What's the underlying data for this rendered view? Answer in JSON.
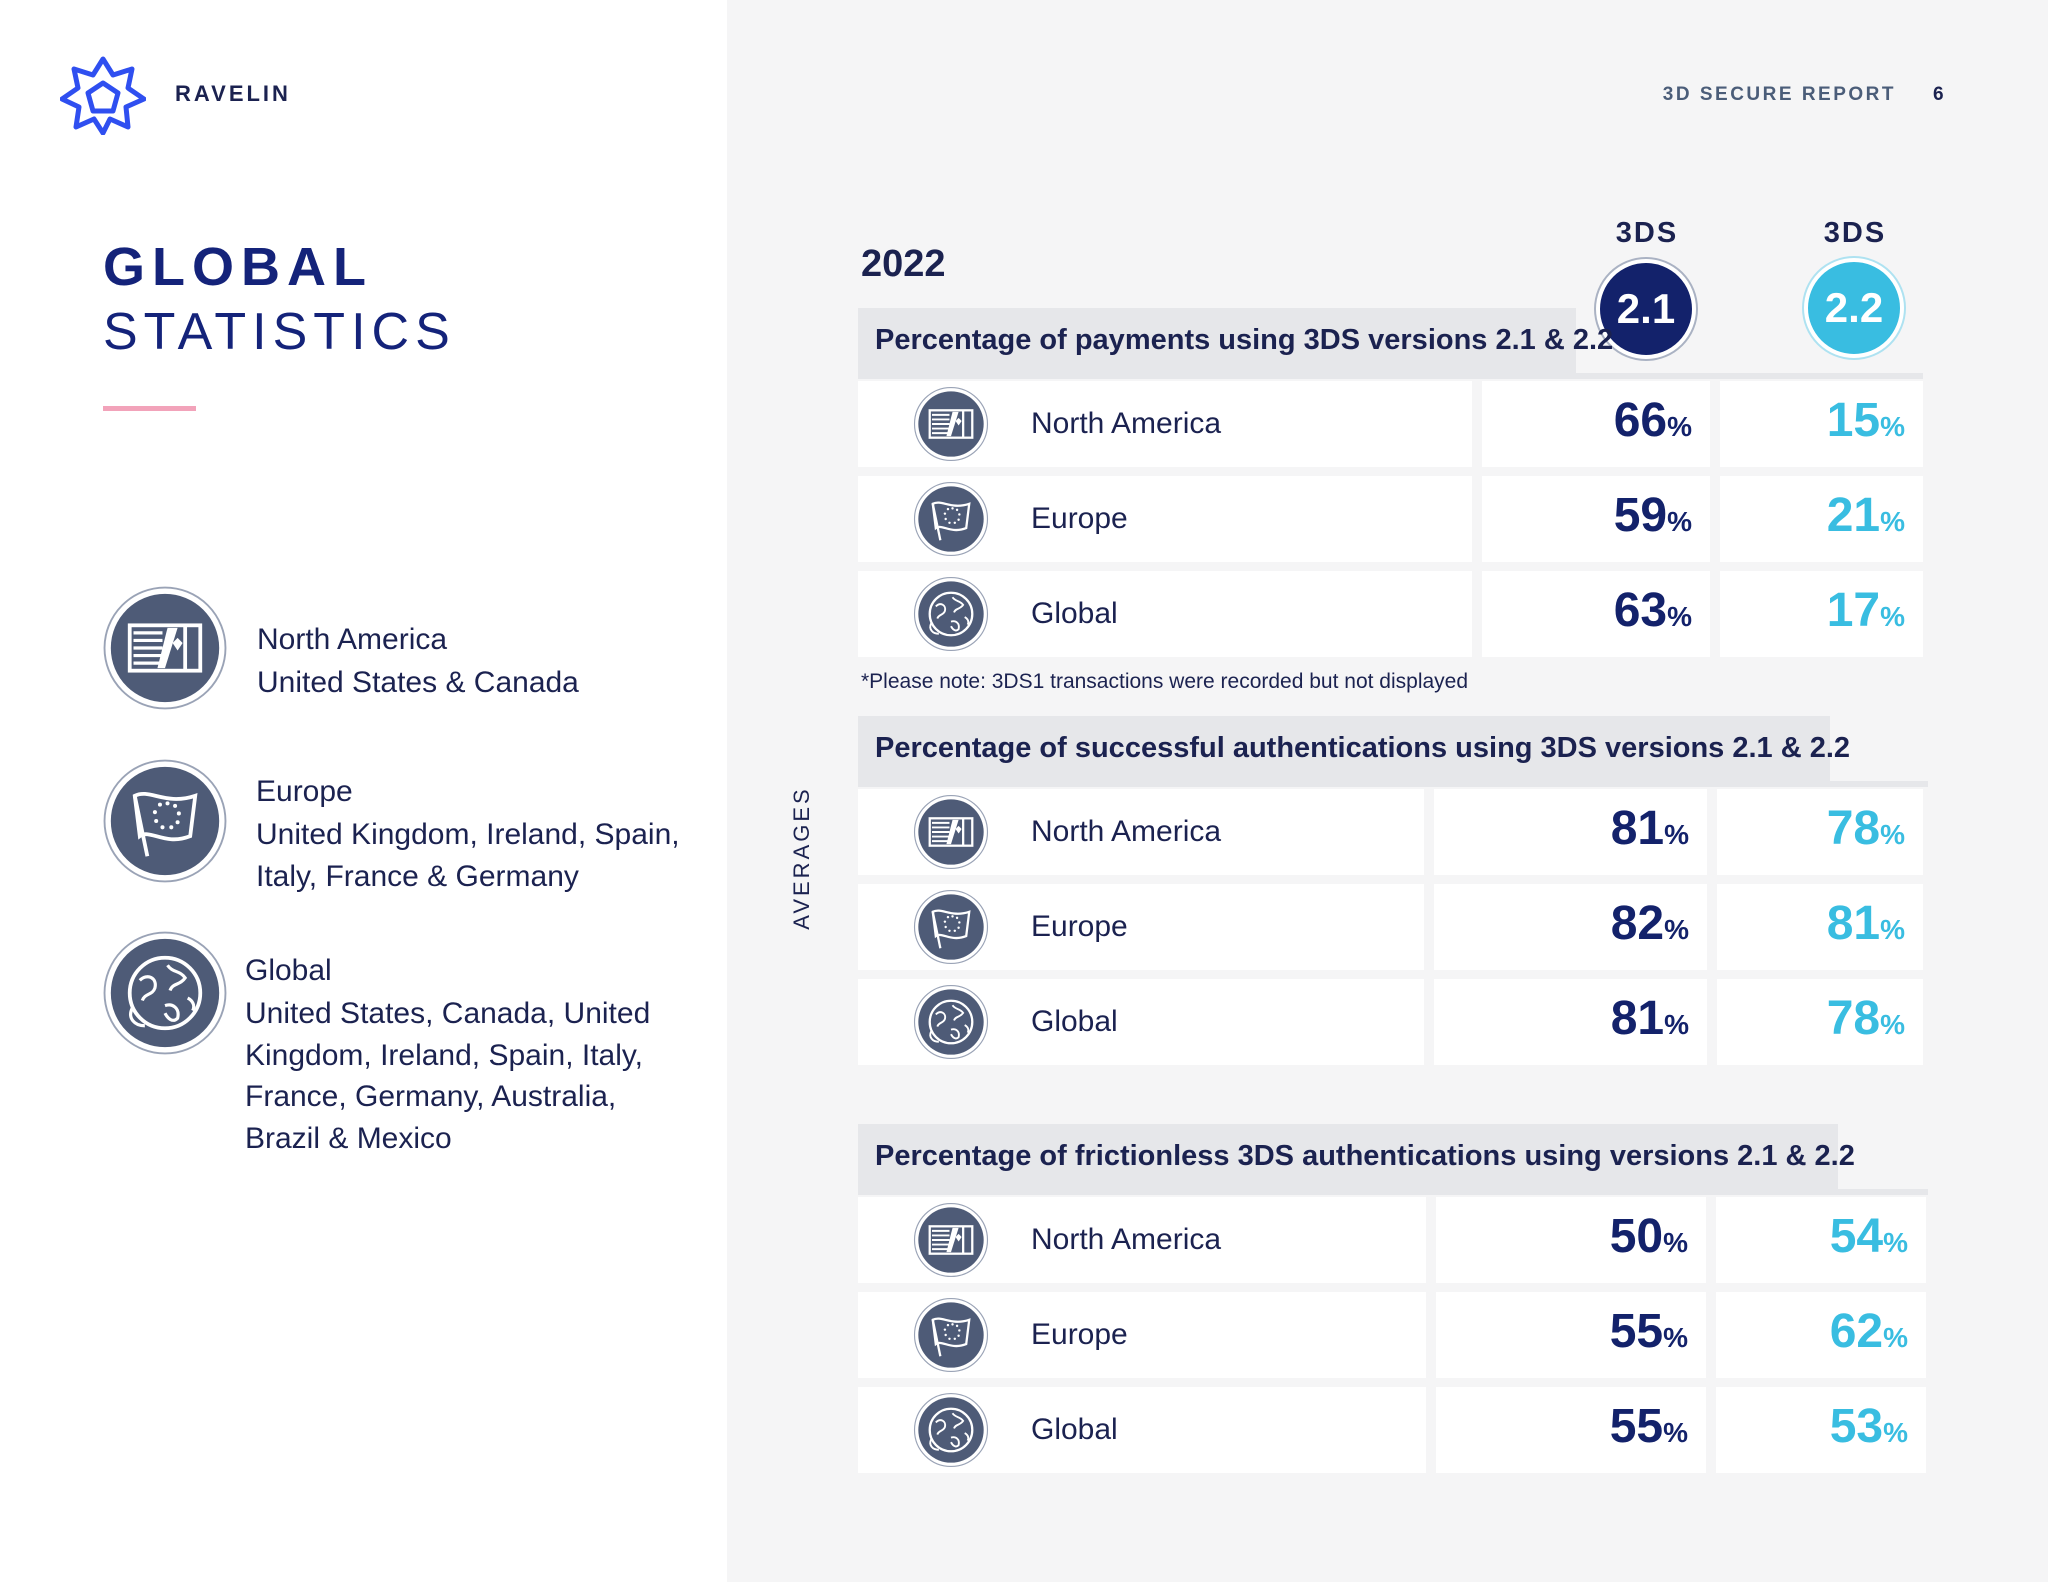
{
  "header": {
    "brand": "RAVELIN",
    "report_title": "3D SECURE REPORT",
    "page_number": "6"
  },
  "heading": {
    "line1": "GLOBAL",
    "line2": "STATISTICS"
  },
  "legend": [
    {
      "title": "North America",
      "description": "United States & Canada",
      "icon": "us-canada-flag-icon"
    },
    {
      "title": "Europe",
      "description": "United Kingdom, Ireland, Spain, Italy, France & Germany",
      "icon": "eu-flag-icon"
    },
    {
      "title": "Global",
      "description": "United States, Canada, United Kingdom, Ireland, Spain, Italy, France, Germany, Australia, Brazil & Mexico",
      "icon": "globe-icon"
    }
  ],
  "averages_label": "AVERAGES",
  "year": "2022",
  "versions": [
    {
      "label": "3DS",
      "badge": "2.1",
      "color": "#13226b"
    },
    {
      "label": "3DS",
      "badge": "2.2",
      "color": "#39bde1"
    }
  ],
  "note": "*Please note: 3DS1 transactions were recorded but not displayed",
  "percent_sign": "%",
  "sections": [
    {
      "title": "Percentage of payments using 3DS versions 2.1 & 2.2",
      "rows": [
        {
          "region": "North America",
          "v21": "66",
          "v22": "15"
        },
        {
          "region": "Europe",
          "v21": "59",
          "v22": "21"
        },
        {
          "region": "Global",
          "v21": "63",
          "v22": "17"
        }
      ]
    },
    {
      "title": "Percentage of successful authentications using 3DS versions 2.1 & 2.2",
      "rows": [
        {
          "region": "North America",
          "v21": "81",
          "v22": "78"
        },
        {
          "region": "Europe",
          "v21": "82",
          "v22": "81"
        },
        {
          "region": "Global",
          "v21": "81",
          "v22": "78"
        }
      ]
    },
    {
      "title": "Percentage of frictionless 3DS authentications using versions 2.1 & 2.2",
      "rows": [
        {
          "region": "North America",
          "v21": "50",
          "v22": "54"
        },
        {
          "region": "Europe",
          "v21": "55",
          "v22": "62"
        },
        {
          "region": "Global",
          "v21": "55",
          "v22": "53"
        }
      ]
    }
  ]
}
